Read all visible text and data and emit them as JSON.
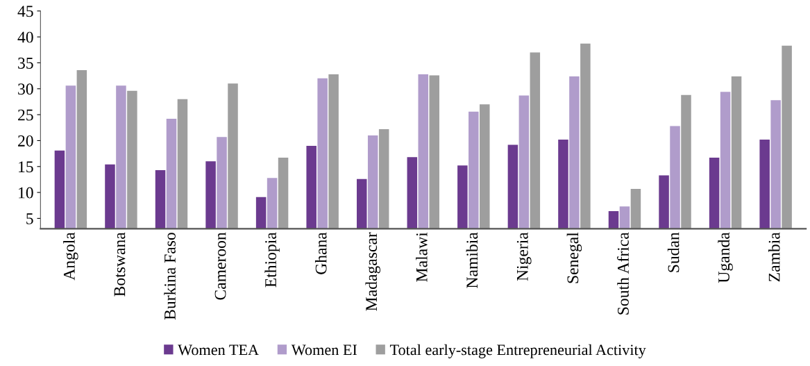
{
  "chart_data": {
    "type": "bar",
    "categories": [
      "Angola",
      "Botswana",
      "Burkina Faso",
      "Cameroon",
      "Ethiopia",
      "Ghana",
      "Madagascar",
      "Malawi",
      "Namibia",
      "Nigeria",
      "Senegal",
      "South Africa",
      "Sudan",
      "Uganda",
      "Zambia"
    ],
    "series": [
      {
        "name": "Women TEA",
        "color": "#6b3a8f",
        "values": [
          18.1,
          15.4,
          14.3,
          16.0,
          9.1,
          19.0,
          12.6,
          16.8,
          15.2,
          19.2,
          20.2,
          6.4,
          13.3,
          16.7,
          20.2
        ]
      },
      {
        "name": "Women EI",
        "color": "#b09ccb",
        "values": [
          30.6,
          30.6,
          24.2,
          20.7,
          12.8,
          32.0,
          21.0,
          32.8,
          25.6,
          28.7,
          32.4,
          7.3,
          22.8,
          29.4,
          27.8
        ]
      },
      {
        "name": "Total early-stage Entrepreneurial Activity",
        "color": "#9e9e9e",
        "values": [
          33.6,
          29.6,
          28.0,
          31.0,
          16.7,
          32.8,
          22.2,
          32.6,
          27.0,
          37.0,
          38.7,
          10.7,
          28.8,
          32.4,
          38.3
        ]
      }
    ],
    "ylim": [
      3,
      45
    ],
    "yticks": [
      5,
      10,
      15,
      20,
      25,
      30,
      35,
      40,
      45
    ],
    "grid": false,
    "legend": "bottom"
  }
}
